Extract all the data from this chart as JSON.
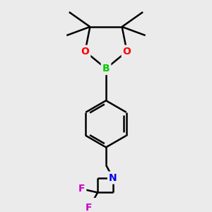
{
  "bg_color": "#ebebeb",
  "bond_color": "#000000",
  "bond_width": 1.8,
  "atom_colors": {
    "B": "#00cc00",
    "O": "#ff0000",
    "N": "#0000ee",
    "F": "#cc00cc",
    "C": "#000000"
  }
}
